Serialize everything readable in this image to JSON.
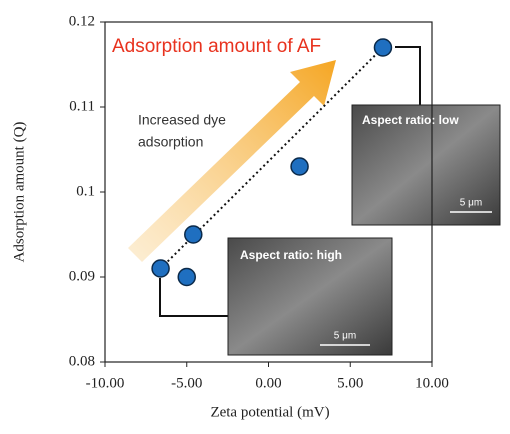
{
  "chart_data": {
    "type": "scatter",
    "xlabel": "Zeta potential (mV)",
    "ylabel": "Adsorption amount (Q)",
    "x": [
      -6.6,
      -5.0,
      -4.6,
      1.9,
      7.0
    ],
    "y": [
      0.091,
      0.09,
      0.095,
      0.103,
      0.117
    ],
    "color": "#1f6fc0",
    "xlim": [
      -10,
      10
    ],
    "xticks": [
      {
        "value": -10,
        "label": "-10.00"
      },
      {
        "value": -5,
        "label": "-5.00"
      },
      {
        "value": 0,
        "label": "0.00"
      },
      {
        "value": 5,
        "label": "5.00"
      },
      {
        "value": 10,
        "label": "10.00"
      }
    ],
    "ylim": [
      0.08,
      0.12
    ],
    "yticks": [
      0.08,
      0.09,
      0.1,
      0.11,
      0.12
    ],
    "annotations": {
      "headline": "Adsorption amount of AF",
      "arrow_text": [
        "Increased dye",
        "adsorption"
      ],
      "inset_low": "Aspect ratio: low",
      "inset_high": "Aspect ratio: high",
      "scale_bar": "5 μm"
    }
  }
}
